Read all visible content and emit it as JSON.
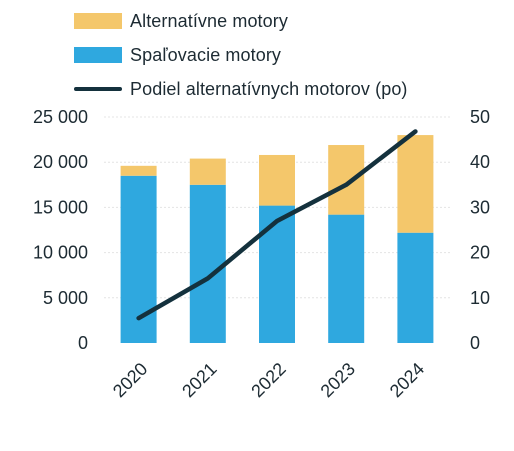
{
  "chart_data": {
    "type": "bar",
    "stacked": true,
    "categories": [
      "2020",
      "2021",
      "2022",
      "2023",
      "2024"
    ],
    "series": [
      {
        "name": "Spaľovacie motory",
        "axis": "left",
        "kind": "bar",
        "color": "#2fa8df",
        "values": [
          18500,
          17500,
          15200,
          14200,
          12200
        ]
      },
      {
        "name": "Alternatívne motory",
        "axis": "left",
        "kind": "bar",
        "color": "#f4c76b",
        "values": [
          1100,
          2900,
          5600,
          7700,
          10800
        ]
      },
      {
        "name": "Podiel alternatívnych motorov (po)",
        "axis": "right",
        "kind": "line",
        "color": "#14313d",
        "values": [
          5.5,
          14.3,
          27,
          35,
          46.8
        ]
      }
    ],
    "y_left": {
      "ylim": [
        0,
        25000
      ],
      "ticks": [
        0,
        5000,
        10000,
        15000,
        20000,
        25000
      ],
      "tick_labels": [
        "0",
        "5 000",
        "10 000",
        "15 000",
        "20 000",
        "25 000"
      ]
    },
    "y_right": {
      "ylim": [
        0,
        50
      ],
      "ticks": [
        0,
        10,
        20,
        30,
        40,
        50
      ],
      "tick_labels": [
        "0",
        "10",
        "20",
        "30",
        "40",
        "50"
      ]
    },
    "grid": true,
    "legend_position": "top"
  }
}
